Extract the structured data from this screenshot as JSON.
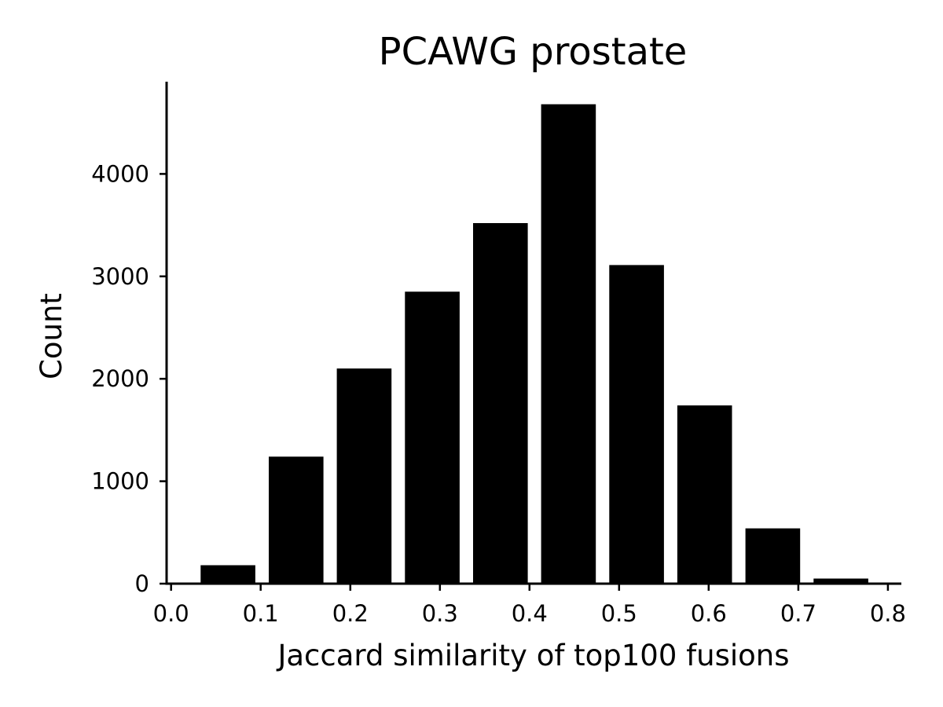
{
  "chart_data": {
    "type": "bar",
    "title": "PCAWG prostate",
    "xlabel": "Jaccard similarity of top100 fusions",
    "ylabel": "Count",
    "xlim": [
      -0.005,
      0.815
    ],
    "ylim": [
      0,
      4900
    ],
    "xticks": [
      0.0,
      0.1,
      0.2,
      0.3,
      0.4,
      0.5,
      0.6,
      0.7,
      0.8
    ],
    "xtick_labels": [
      "0.0",
      "0.1",
      "0.2",
      "0.3",
      "0.4",
      "0.5",
      "0.6",
      "0.7",
      "0.8"
    ],
    "yticks": [
      0,
      1000,
      2000,
      3000,
      4000
    ],
    "ytick_labels": [
      "0",
      "1000",
      "2000",
      "3000",
      "4000"
    ],
    "bar_color": "#000000",
    "bins": [
      {
        "start": 0.033,
        "end": 0.094,
        "value": 180
      },
      {
        "start": 0.109,
        "end": 0.17,
        "value": 1240
      },
      {
        "start": 0.185,
        "end": 0.246,
        "value": 2100
      },
      {
        "start": 0.261,
        "end": 0.322,
        "value": 2850
      },
      {
        "start": 0.337,
        "end": 0.398,
        "value": 3520
      },
      {
        "start": 0.413,
        "end": 0.474,
        "value": 4680
      },
      {
        "start": 0.489,
        "end": 0.55,
        "value": 3110
      },
      {
        "start": 0.565,
        "end": 0.626,
        "value": 1740
      },
      {
        "start": 0.641,
        "end": 0.702,
        "value": 540
      },
      {
        "start": 0.717,
        "end": 0.778,
        "value": 50
      }
    ],
    "grid": false,
    "legend": "none"
  }
}
